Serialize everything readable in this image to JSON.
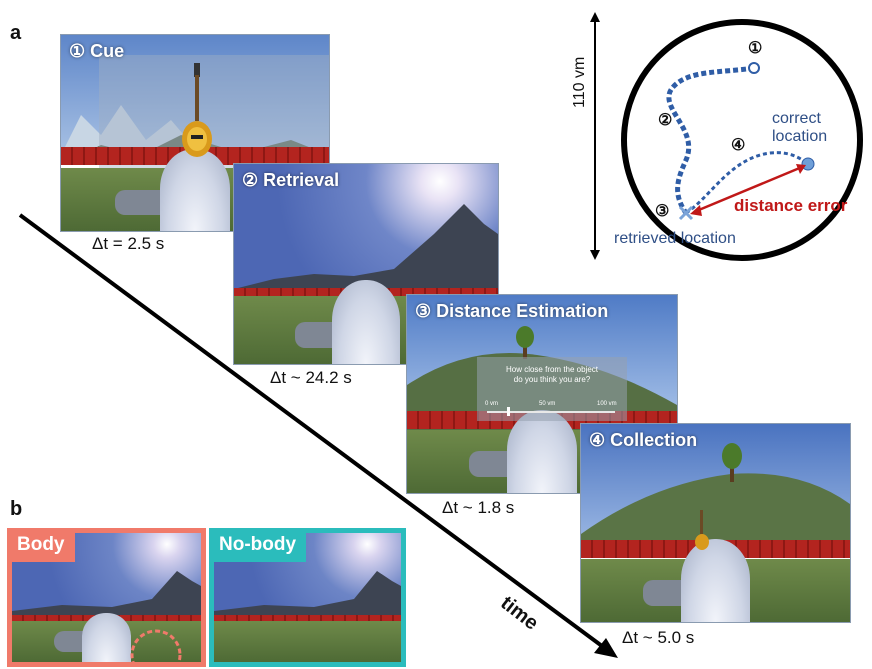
{
  "panels": {
    "a": "a",
    "b": "b"
  },
  "timeline": {
    "axis_label": "time",
    "steps": [
      {
        "label": "① Cue",
        "duration": "Δt = 2.5 s"
      },
      {
        "label": "② Retrieval",
        "duration": "Δt ~ 24.2 s"
      },
      {
        "label": "③ Distance Estimation",
        "duration": "Δt ~ 1.8 s"
      },
      {
        "label": "④ Collection",
        "duration": "Δt ~ 5.0 s"
      }
    ]
  },
  "estimation_ui": {
    "question_line1": "How close from the object",
    "question_line2": "do you think you are?",
    "slider_min": "0 vm",
    "slider_mid": "50 vm",
    "slider_max": "100 vm"
  },
  "arena_map": {
    "diameter_label": "110 vm",
    "marker_1": "①",
    "marker_2": "②",
    "marker_3": "③",
    "marker_4": "④",
    "correct_location_line1": "correct",
    "correct_location_line2": "location",
    "retrieved_location": "retrieved location",
    "distance_error": "distance error"
  },
  "conditions": [
    {
      "label": "Body",
      "color": "#f07a6a"
    },
    {
      "label": "No-body",
      "color": "#2bbcbc"
    }
  ]
}
